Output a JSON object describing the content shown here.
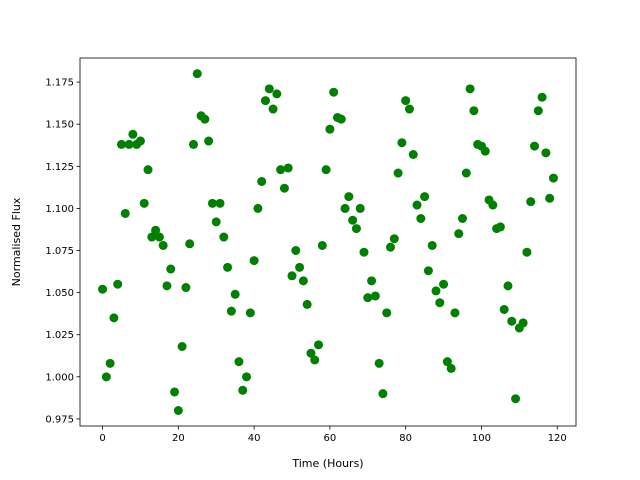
{
  "chart_data": {
    "type": "scatter",
    "xlabel": "Time (Hours)",
    "ylabel": "Normalised Flux",
    "color": "#008000",
    "x": [
      0,
      1,
      2,
      3,
      4,
      5,
      6,
      7,
      8,
      9,
      10,
      11,
      12,
      13,
      14,
      15,
      16,
      17,
      18,
      19,
      20,
      21,
      22,
      23,
      24,
      25,
      26,
      27,
      28,
      29,
      30,
      31,
      32,
      33,
      34,
      35,
      36,
      37,
      38,
      39,
      40,
      41,
      42,
      43,
      44,
      45,
      46,
      47,
      48,
      49,
      50,
      51,
      52,
      53,
      54,
      55,
      56,
      57,
      58,
      59,
      60,
      61,
      62,
      63,
      64,
      65,
      66,
      67,
      68,
      69,
      70,
      71,
      72,
      73,
      74,
      75,
      76,
      77,
      78,
      79,
      80,
      81,
      82,
      83,
      84,
      85,
      86,
      87,
      88,
      89,
      90,
      91,
      92,
      93,
      94,
      95,
      96,
      97,
      98,
      99,
      100,
      101,
      102,
      103,
      104,
      105,
      106,
      107,
      108,
      109,
      110,
      111,
      112,
      113,
      114,
      115,
      116,
      117,
      118,
      119
    ],
    "values": [
      1.052,
      1.0,
      1.008,
      1.035,
      1.055,
      1.138,
      1.097,
      1.138,
      1.144,
      1.138,
      1.14,
      1.103,
      1.123,
      1.083,
      1.087,
      1.083,
      1.078,
      1.054,
      1.064,
      0.991,
      0.98,
      1.018,
      1.053,
      1.079,
      1.138,
      1.18,
      1.155,
      1.153,
      1.14,
      1.103,
      1.092,
      1.103,
      1.083,
      1.065,
      1.039,
      1.049,
      1.009,
      0.992,
      1.0,
      1.038,
      1.069,
      1.1,
      1.116,
      1.164,
      1.171,
      1.159,
      1.168,
      1.123,
      1.112,
      1.124,
      1.06,
      1.075,
      1.065,
      1.057,
      1.043,
      1.014,
      1.01,
      1.019,
      1.078,
      1.123,
      1.147,
      1.169,
      1.154,
      1.153,
      1.1,
      1.107,
      1.093,
      1.088,
      1.1,
      1.074,
      1.047,
      1.057,
      1.048,
      1.008,
      0.99,
      1.038,
      1.077,
      1.082,
      1.121,
      1.139,
      1.164,
      1.159,
      1.132,
      1.102,
      1.094,
      1.107,
      1.063,
      1.078,
      1.051,
      1.044,
      1.055,
      1.009,
      1.005,
      1.038,
      1.085,
      1.094,
      1.121,
      1.171,
      1.158,
      1.138,
      1.137,
      1.134,
      1.105,
      1.102,
      1.088,
      1.089,
      1.04,
      1.054,
      1.033,
      0.987,
      1.029,
      1.032,
      1.074,
      1.104,
      1.137,
      1.158,
      1.166,
      1.133,
      1.106,
      1.118
    ],
    "xlim": [
      -5.95,
      124.95
    ],
    "xticks": [
      0,
      20,
      40,
      60,
      80,
      100,
      120
    ],
    "ylim": [
      0.9708,
      1.1893
    ],
    "yticks": [
      0.975,
      {
        "value": 1,
        "label": "1.000"
      },
      1.025,
      {
        "value": 1.05,
        "label": "1.050"
      },
      1.075,
      {
        "value": 1.1,
        "label": "1.100"
      },
      1.125,
      {
        "value": 1.15,
        "label": "1.150"
      },
      1.175
    ]
  }
}
